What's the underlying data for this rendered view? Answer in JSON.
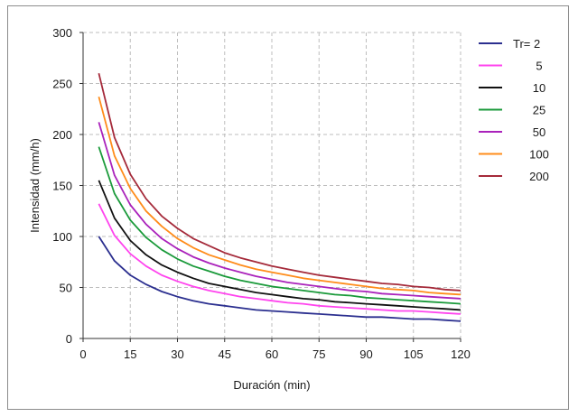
{
  "chart_data": {
    "type": "line",
    "title": "",
    "xlabel": "Duración (min)",
    "ylabel": "Intensidad (mm/h)",
    "xlim": [
      0,
      120
    ],
    "ylim": [
      0,
      300
    ],
    "xticks": [
      0,
      15,
      30,
      45,
      60,
      75,
      90,
      105,
      120
    ],
    "yticks": [
      0,
      50,
      100,
      150,
      200,
      250,
      300
    ],
    "grid": true,
    "legend_position": "right",
    "x": [
      5,
      10,
      15,
      20,
      25,
      30,
      35,
      40,
      45,
      50,
      55,
      60,
      65,
      70,
      75,
      80,
      85,
      90,
      95,
      100,
      105,
      110,
      115,
      120
    ],
    "series": [
      {
        "name": "Tr= 2",
        "color": "#2b2f8f",
        "values": [
          100,
          76,
          62,
          53,
          46,
          41,
          37,
          34,
          32,
          30,
          28,
          27,
          26,
          25,
          24,
          23,
          22,
          21,
          21,
          20,
          19,
          19,
          18,
          17
        ]
      },
      {
        "name": "5",
        "color": "#ff44ee",
        "values": [
          132,
          101,
          83,
          71,
          62,
          56,
          51,
          47,
          44,
          41,
          39,
          37,
          35,
          34,
          32,
          31,
          30,
          29,
          28,
          27,
          27,
          26,
          25,
          24
        ]
      },
      {
        "name": "10",
        "color": "#111111",
        "values": [
          155,
          118,
          96,
          82,
          72,
          65,
          59,
          54,
          51,
          48,
          45,
          43,
          41,
          39,
          38,
          36,
          35,
          34,
          33,
          32,
          31,
          30,
          29,
          28
        ]
      },
      {
        "name": "25",
        "color": "#1a9a3a",
        "values": [
          188,
          142,
          116,
          99,
          87,
          78,
          71,
          66,
          61,
          57,
          54,
          51,
          49,
          47,
          45,
          43,
          42,
          40,
          39,
          38,
          37,
          36,
          35,
          34
        ]
      },
      {
        "name": "50",
        "color": "#aa22bb",
        "values": [
          212,
          160,
          131,
          112,
          98,
          88,
          80,
          74,
          69,
          65,
          61,
          58,
          55,
          53,
          51,
          49,
          47,
          46,
          44,
          43,
          42,
          41,
          40,
          39
        ]
      },
      {
        "name": "100",
        "color": "#ff8c1a",
        "values": [
          237,
          179,
          147,
          125,
          110,
          98,
          89,
          82,
          77,
          72,
          68,
          65,
          62,
          59,
          57,
          55,
          53,
          51,
          49,
          48,
          47,
          45,
          44,
          43
        ]
      },
      {
        "name": "200",
        "color": "#a52a3a",
        "values": [
          260,
          197,
          161,
          137,
          120,
          108,
          98,
          91,
          84,
          79,
          75,
          71,
          68,
          65,
          62,
          60,
          58,
          56,
          54,
          53,
          51,
          50,
          48,
          47
        ]
      }
    ]
  }
}
